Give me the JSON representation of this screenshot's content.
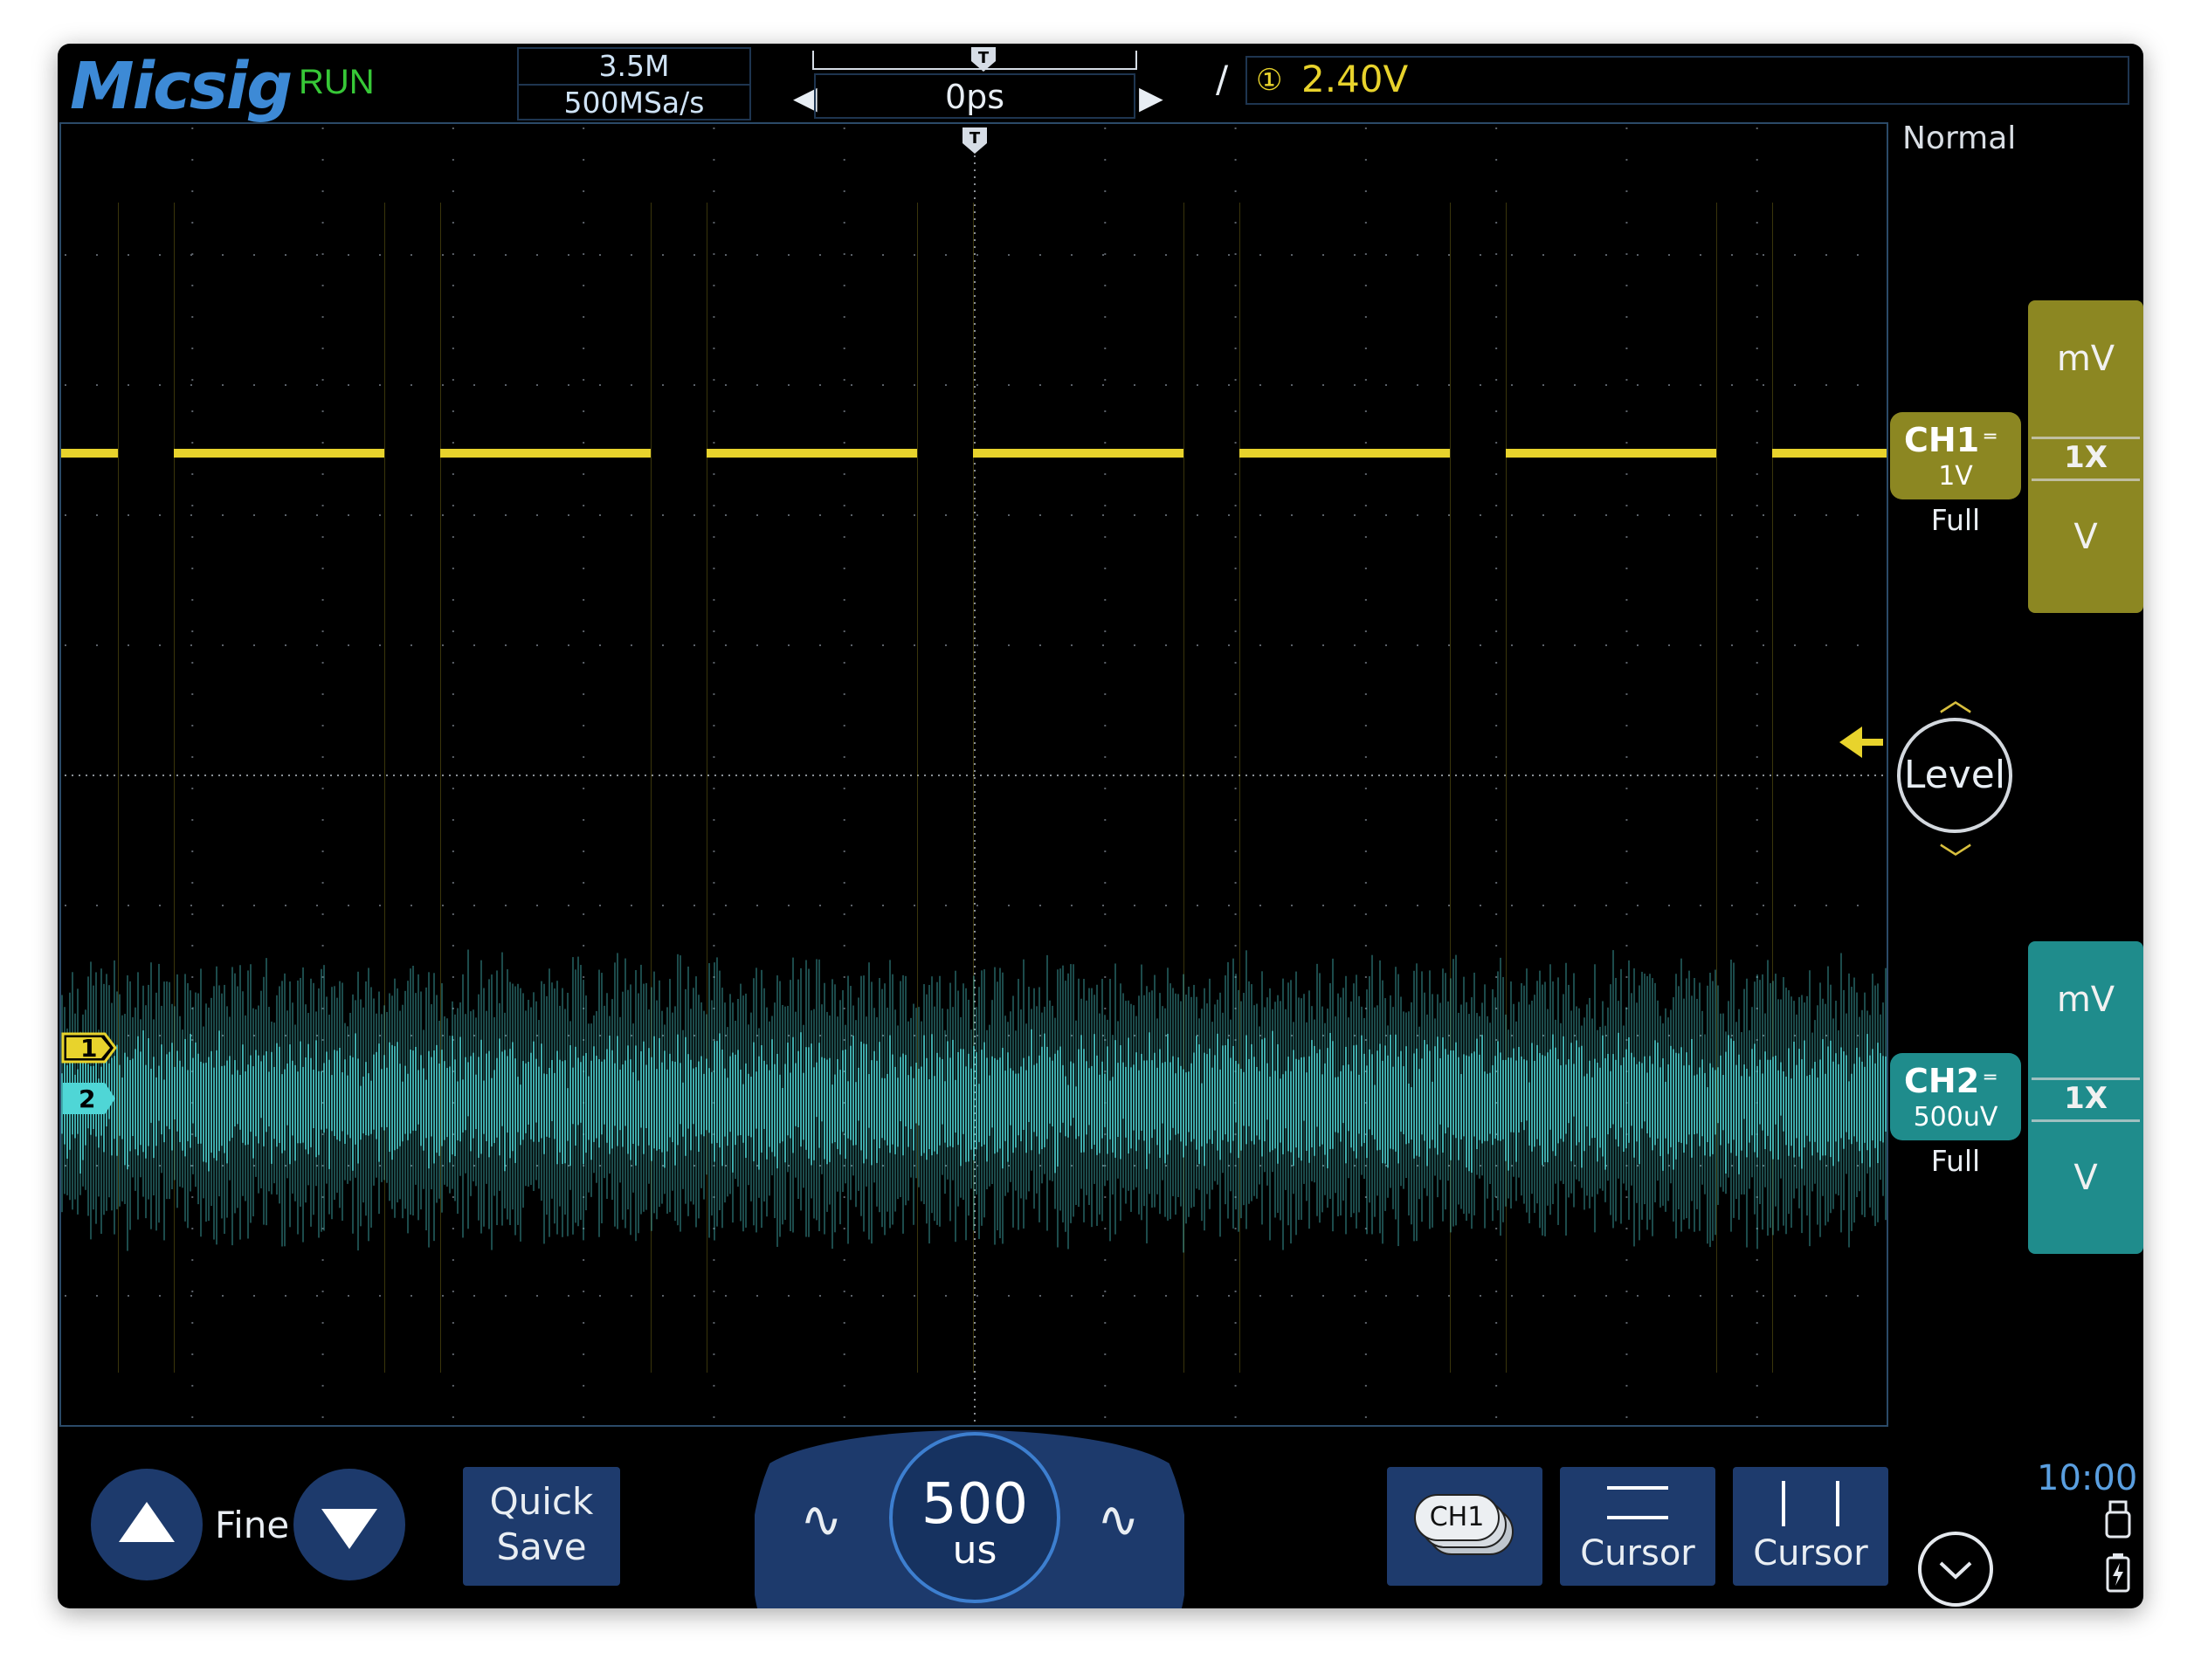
{
  "brand": {
    "logo": "Micsig",
    "run_state": "RUN"
  },
  "acquisition": {
    "memory_depth": "3.5M",
    "sample_rate": "500MSa/s"
  },
  "horizontal": {
    "position": "0ps"
  },
  "trigger": {
    "slope": "rising",
    "source": "①",
    "level": "2.40V",
    "mode": "Normal"
  },
  "channels": {
    "ch1": {
      "name": "CH1",
      "scale": "1V",
      "bandwidth": "Full",
      "units": [
        "mV",
        "1X",
        "V"
      ],
      "color": "#e8d32c",
      "marker": "1"
    },
    "ch2": {
      "name": "CH2",
      "scale": "500uV",
      "bandwidth": "Full",
      "units": [
        "mV",
        "1X",
        "V"
      ],
      "color": "#4fd6d6",
      "marker": "2"
    }
  },
  "level_knob": {
    "label": "Level"
  },
  "bottom": {
    "fine_label": "Fine",
    "quick_save": [
      "Quick",
      "Save"
    ],
    "timebase": {
      "value": "500",
      "unit": "us"
    },
    "ch_select": "CH1",
    "cursor_h": "Cursor",
    "cursor_v": "Cursor"
  },
  "status": {
    "time": "10:00"
  },
  "icons": [
    "trigger-marker-icon",
    "arrow-left-icon",
    "arrow-right-icon",
    "rising-edge-icon",
    "level-arrow-icon",
    "up-triangle-icon",
    "down-triangle-icon",
    "sine-icon",
    "usb-icon",
    "battery-icon",
    "chevron-down-icon"
  ]
}
